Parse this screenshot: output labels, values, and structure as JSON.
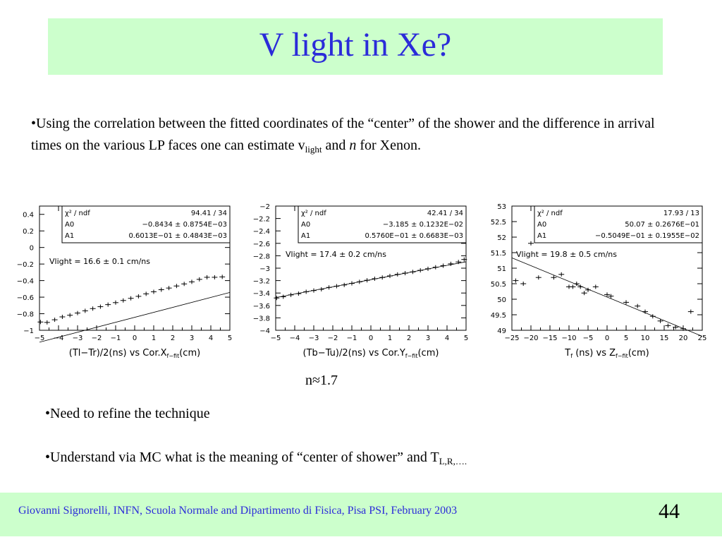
{
  "slide": {
    "title": "V light in Xe?",
    "bullet1_a": "•Using the correlation between the fitted coordinates of the “center” of the shower and the difference in arrival times on the various LP faces one can estimate v",
    "bullet1_sub": "light",
    "bullet1_b": " and ",
    "bullet1_n": "n",
    "bullet1_c": " for Xenon.",
    "n_ratio": "n≈1.7",
    "bullet2": "•Need to refine the technique",
    "bullet3_a": "•Understand via MC what is the meaning of “center of shower” and T",
    "bullet3_sub": "L,R,….",
    "footer": "Giovanni Signorelli, INFN, Scuola Normale and  Dipartimento di Fisica, Pisa    PSI, February 2003",
    "page_number": "44"
  },
  "colors": {
    "title": "#2b2bd9",
    "band": "#ccffcc",
    "footer_text": "#2b2bd9"
  },
  "chart_data": [
    {
      "type": "scatter",
      "xlabel_main": "(Tl−Tr)/2(ns) vs Cor.X",
      "xlabel_sub": "f−fit",
      "xlabel_tail": "(cm)",
      "xlim": [
        -5,
        5
      ],
      "ylim": [
        -1,
        0.5
      ],
      "xticks": [
        "−5",
        "−4",
        "−3",
        "−2",
        "−1",
        "0",
        "1",
        "2",
        "3",
        "4",
        "5"
      ],
      "yticks": [
        "0.4",
        "0.2",
        "0",
        "−0.2",
        "−0.4",
        "−0.6",
        "−0.8",
        "−1"
      ],
      "ytick_values": [
        0.4,
        0.2,
        0,
        -0.2,
        -0.4,
        -0.6,
        -0.8,
        -1
      ],
      "stats": [
        [
          "χ² / ndf",
          "94.41  /   34"
        ],
        [
          "A0",
          "−0.8434 ±  0.8754E−03"
        ],
        [
          "A1",
          "0.6013E−01 ±  0.4843E−03"
        ]
      ],
      "annotation": "Vlight = 16.6 ± 0.1 cm/ns",
      "fit": [
        -0.8434,
        0.06013
      ],
      "points": [
        [
          -4.95,
          -0.9
        ],
        [
          -4.6,
          -0.905
        ],
        [
          -4.2,
          -0.873
        ],
        [
          -3.8,
          -0.838
        ],
        [
          -3.4,
          -0.818
        ],
        [
          -3.0,
          -0.792
        ],
        [
          -2.6,
          -0.765
        ],
        [
          -2.2,
          -0.738
        ],
        [
          -1.8,
          -0.715
        ],
        [
          -1.4,
          -0.69
        ],
        [
          -1.0,
          -0.666
        ],
        [
          -0.6,
          -0.64
        ],
        [
          -0.2,
          -0.614
        ],
        [
          0.2,
          -0.59
        ],
        [
          0.6,
          -0.56
        ],
        [
          1.0,
          -0.535
        ],
        [
          1.4,
          -0.51
        ],
        [
          1.8,
          -0.49
        ],
        [
          2.2,
          -0.465
        ],
        [
          2.6,
          -0.44
        ],
        [
          3.0,
          -0.415
        ],
        [
          3.4,
          -0.385
        ],
        [
          3.8,
          -0.36
        ],
        [
          4.2,
          -0.36
        ],
        [
          4.6,
          -0.355
        ]
      ]
    },
    {
      "type": "scatter",
      "xlabel_main": "(Tb−Tu)/2(ns) vs Cor.Y",
      "xlabel_sub": "f−fit",
      "xlabel_tail": "(cm)",
      "xlim": [
        -5,
        5
      ],
      "ylim": [
        -4,
        -2
      ],
      "xticks": [
        "−5",
        "−4",
        "−3",
        "−2",
        "−1",
        "0",
        "1",
        "2",
        "3",
        "4",
        "5"
      ],
      "yticks": [
        "−2",
        "−2.2",
        "−2.4",
        "−2.6",
        "−2.8",
        "−3",
        "−3.2",
        "−3.4",
        "−3.6",
        "−3.8",
        "−4"
      ],
      "ytick_values": [
        -2,
        -2.2,
        -2.4,
        -2.6,
        -2.8,
        -3,
        -3.2,
        -3.4,
        -3.6,
        -3.8,
        -4
      ],
      "stats": [
        [
          "χ² / ndf",
          "42.41  /   34"
        ],
        [
          "A0",
          "−3.185 ±  0.1232E−02"
        ],
        [
          "A1",
          "0.5760E−01 ±  0.6683E−03"
        ]
      ],
      "annotation": "Vlight = 17.4 ± 0.2 cm/ns",
      "fit": [
        -3.185,
        0.0576
      ],
      "points": [
        [
          -4.95,
          -3.48
        ],
        [
          -4.6,
          -3.46
        ],
        [
          -4.2,
          -3.43
        ],
        [
          -3.8,
          -3.41
        ],
        [
          -3.4,
          -3.38
        ],
        [
          -3.0,
          -3.36
        ],
        [
          -2.6,
          -3.34
        ],
        [
          -2.2,
          -3.31
        ],
        [
          -1.8,
          -3.29
        ],
        [
          -1.4,
          -3.27
        ],
        [
          -1.0,
          -3.245
        ],
        [
          -0.6,
          -3.22
        ],
        [
          -0.2,
          -3.195
        ],
        [
          0.2,
          -3.17
        ],
        [
          0.6,
          -3.15
        ],
        [
          1.0,
          -3.125
        ],
        [
          1.4,
          -3.1
        ],
        [
          1.8,
          -3.08
        ],
        [
          2.2,
          -3.06
        ],
        [
          2.6,
          -3.035
        ],
        [
          3.0,
          -3.01
        ],
        [
          3.4,
          -2.985
        ],
        [
          3.8,
          -2.96
        ],
        [
          4.2,
          -2.93
        ],
        [
          4.6,
          -2.9
        ],
        [
          4.9,
          -2.86
        ]
      ]
    },
    {
      "type": "scatter",
      "xlabel_main": "T",
      "xlabel_t_sub": "f",
      "xlabel_mid": " (ns)  vs Z",
      "xlabel_sub": "f−fit",
      "xlabel_tail": "(cm)",
      "xlim": [
        -25,
        25
      ],
      "ylim": [
        49,
        53
      ],
      "xticks": [
        "−25",
        "−20",
        "−15",
        "−10",
        "−5",
        "0",
        "5",
        "10",
        "15",
        "20",
        "25"
      ],
      "yticks": [
        "53",
        "52.5",
        "52",
        "51.5",
        "51",
        "50.5",
        "50",
        "49.5",
        "49"
      ],
      "ytick_values": [
        53,
        52.5,
        52,
        51.5,
        51,
        50.5,
        50,
        49.5,
        49
      ],
      "stats": [
        [
          "χ² / ndf",
          "17.93  /   13"
        ],
        [
          "A0",
          "50.07 ±  0.2676E−01"
        ],
        [
          "A1",
          "−0.5049E−01 ±  0.1955E−02"
        ]
      ],
      "annotation": "Vlight = 19.8 ± 0.5 cm/ns",
      "fit": [
        50.07,
        -0.05049
      ],
      "points": [
        [
          -24,
          50.6
        ],
        [
          -22,
          50.5
        ],
        [
          -20,
          51.8
        ],
        [
          -18,
          50.7
        ],
        [
          -14,
          50.7
        ],
        [
          -12,
          50.8
        ],
        [
          -10,
          50.4
        ],
        [
          -9,
          50.4
        ],
        [
          -8,
          50.5
        ],
        [
          -7,
          50.4
        ],
        [
          -6,
          50.2
        ],
        [
          -5,
          50.3
        ],
        [
          -3,
          50.4
        ],
        [
          0,
          50.15
        ],
        [
          1,
          50.1
        ],
        [
          5,
          49.9
        ],
        [
          8,
          49.78
        ],
        [
          10,
          49.6
        ],
        [
          12,
          49.45
        ],
        [
          14,
          49.3
        ],
        [
          16,
          49.15
        ],
        [
          18,
          49.1
        ],
        [
          20,
          49.05
        ],
        [
          22,
          49.6
        ]
      ]
    }
  ]
}
